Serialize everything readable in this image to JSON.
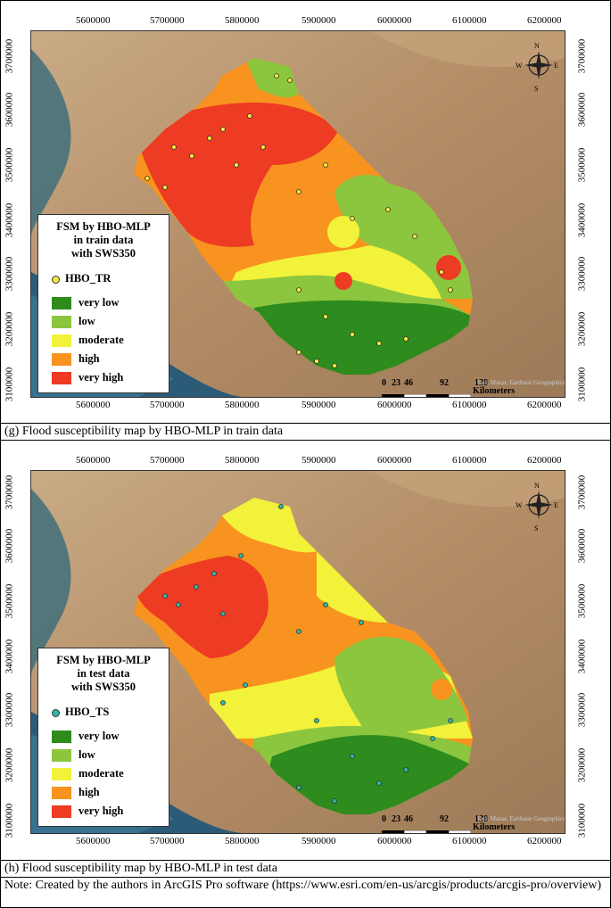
{
  "x_ticks": [
    "5600000",
    "5700000",
    "5800000",
    "5900000",
    "6000000",
    "6100000",
    "6200000"
  ],
  "y_ticks": [
    "3700000",
    "3600000",
    "3500000",
    "3400000",
    "3300000",
    "3200000",
    "3100000"
  ],
  "compass": {
    "n": "N",
    "s": "S",
    "e": "E",
    "w": "W"
  },
  "scale": {
    "ticks": [
      "0",
      "23",
      "46",
      "92",
      "138"
    ],
    "unit": "Kilometers"
  },
  "map_credit": "Esri, Maxar, Earthstar Geographics",
  "classes": [
    {
      "label": "very low",
      "color": "#2e8b1e"
    },
    {
      "label": "low",
      "color": "#8cc63f"
    },
    {
      "label": "moderate",
      "color": "#f2f23a"
    },
    {
      "label": "high",
      "color": "#f7931e"
    },
    {
      "label": "very high",
      "color": "#ed3b24"
    }
  ],
  "panel_g": {
    "legend_title_1": "FSM by HBO-MLP",
    "legend_title_2": "in train data",
    "legend_title_3": "with SWS350",
    "points_label": "HBO_TR",
    "point_color": "#f5e83c",
    "caption": "(g) Flood susceptibility map by HBO-MLP in train data"
  },
  "panel_h": {
    "legend_title_1": "FSM by HBO-MLP",
    "legend_title_2": "in test data",
    "legend_title_3": "with SWS350",
    "points_label": "HBO_TS",
    "point_color": "#2fb7a6",
    "caption": "(h) Flood susceptibility map by HBO-MLP in test data"
  },
  "note": "Note: Created by the authors in ArcGIS Pro  software (https://www.esri.com/en-us/arcgis/products/arcgis-pro/overview)"
}
